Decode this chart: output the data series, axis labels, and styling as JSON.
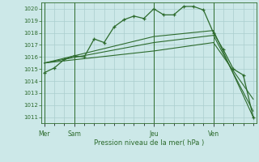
{
  "xlabel": "Pression niveau de la mer( hPa )",
  "bg_color": "#cce8e8",
  "grid_color": "#aacece",
  "line_color": "#2d6b2d",
  "vline_color": "#4a8a4a",
  "ylim": [
    1010.5,
    1020.5
  ],
  "yticks": [
    1011,
    1012,
    1013,
    1014,
    1015,
    1016,
    1017,
    1018,
    1019,
    1020
  ],
  "day_labels": [
    "Mer",
    "Sam",
    "Jeu",
    "Ven"
  ],
  "day_positions": [
    0,
    3,
    11,
    17
  ],
  "xlim": [
    -0.3,
    21.3
  ],
  "series1_x": [
    0,
    1,
    2,
    3,
    4,
    5,
    6,
    7,
    8,
    9,
    10,
    11,
    12,
    13,
    14,
    15,
    16,
    17,
    18,
    19,
    20,
    21
  ],
  "series1_y": [
    1014.7,
    1015.1,
    1015.8,
    1016.1,
    1016.0,
    1017.5,
    1017.2,
    1018.5,
    1019.1,
    1019.4,
    1019.2,
    1020.0,
    1019.5,
    1019.5,
    1020.2,
    1020.2,
    1019.9,
    1018.0,
    1016.6,
    1015.0,
    1014.5,
    1011.0
  ],
  "series2_x": [
    0,
    11,
    17,
    21
  ],
  "series2_y": [
    1015.5,
    1017.7,
    1018.2,
    1011.0
  ],
  "series3_x": [
    0,
    11,
    17,
    21
  ],
  "series3_y": [
    1015.5,
    1017.2,
    1017.8,
    1011.5
  ],
  "series4_x": [
    0,
    11,
    17,
    21
  ],
  "series4_y": [
    1015.5,
    1016.5,
    1017.2,
    1012.5
  ]
}
